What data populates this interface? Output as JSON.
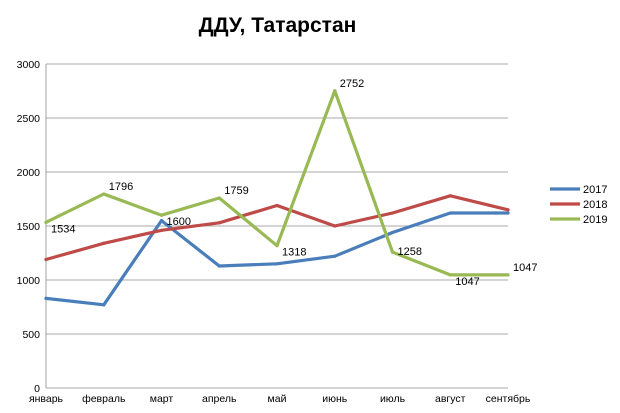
{
  "chart_data": {
    "type": "line",
    "title": "ДДУ, Татарстан",
    "xlabel": "",
    "ylabel": "",
    "categories": [
      "январь",
      "февраль",
      "март",
      "апрель",
      "май",
      "июнь",
      "июль",
      "август",
      "сентябрь"
    ],
    "ylim": [
      0,
      3000
    ],
    "yticks": [
      0,
      500,
      1000,
      1500,
      2000,
      2500,
      3000
    ],
    "grid": true,
    "legend_position": "right",
    "series": [
      {
        "name": "2017",
        "color": "#4a7ebb",
        "values": [
          830,
          770,
          1550,
          1130,
          1150,
          1220,
          1440,
          1620,
          1620
        ]
      },
      {
        "name": "2018",
        "color": "#be4b48",
        "values": [
          1190,
          1340,
          1460,
          1530,
          1690,
          1500,
          1620,
          1780,
          1650
        ]
      },
      {
        "name": "2019",
        "color": "#98b954",
        "values": [
          1534,
          1796,
          1600,
          1759,
          1318,
          2752,
          1258,
          1047,
          1047
        ],
        "data_labels": [
          "1534",
          "1796",
          "1600",
          "1759",
          "1318",
          "2752",
          "1258",
          "1047",
          "1047"
        ]
      }
    ]
  }
}
